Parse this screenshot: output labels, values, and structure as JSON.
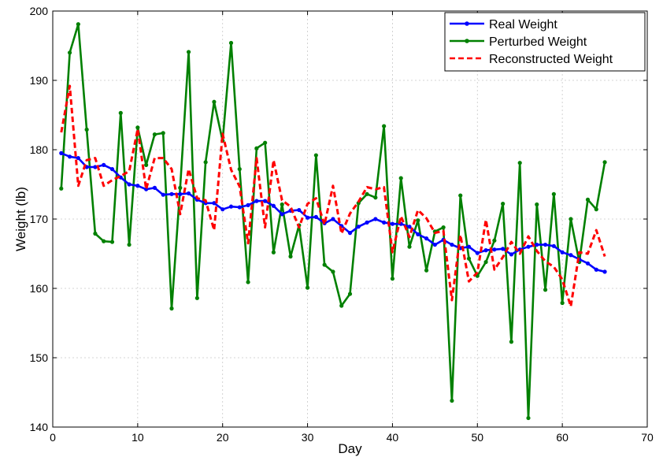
{
  "chart_data": {
    "type": "line",
    "title": "",
    "xlabel": "Day",
    "ylabel": "Weight (lb)",
    "xlim": [
      0,
      70
    ],
    "ylim": [
      140,
      200
    ],
    "xticks": [
      0,
      10,
      20,
      30,
      40,
      50,
      60,
      70
    ],
    "yticks": [
      140,
      150,
      160,
      170,
      180,
      190,
      200
    ],
    "grid": true,
    "legend_position": "top-right",
    "x": [
      1,
      2,
      3,
      4,
      5,
      6,
      7,
      8,
      9,
      10,
      11,
      12,
      13,
      14,
      15,
      16,
      17,
      18,
      19,
      20,
      21,
      22,
      23,
      24,
      25,
      26,
      27,
      28,
      29,
      30,
      31,
      32,
      33,
      34,
      35,
      36,
      37,
      38,
      39,
      40,
      41,
      42,
      43,
      44,
      45,
      46,
      47,
      48,
      49,
      50,
      51,
      52,
      53,
      54,
      55,
      56,
      57,
      58,
      59,
      60,
      61,
      62,
      63,
      64,
      65
    ],
    "series": [
      {
        "name": "Real Weight",
        "color": "#0000ff",
        "style": "solid",
        "marker": "dot",
        "values": [
          179.5,
          179.0,
          178.8,
          177.5,
          177.5,
          177.8,
          177.2,
          176.0,
          175.0,
          174.8,
          174.3,
          174.5,
          173.5,
          173.6,
          173.6,
          173.7,
          172.8,
          172.3,
          172.3,
          171.4,
          171.8,
          171.7,
          172.0,
          172.6,
          172.6,
          171.9,
          170.7,
          171.2,
          171.3,
          170.2,
          170.3,
          169.4,
          170.0,
          169.0,
          168.0,
          168.9,
          169.5,
          170.0,
          169.5,
          169.3,
          169.3,
          168.9,
          167.8,
          167.2,
          166.3,
          167.0,
          166.3,
          165.8,
          166.0,
          165.1,
          165.5,
          165.6,
          165.7,
          164.9,
          165.6,
          166.0,
          166.3,
          166.3,
          166.1,
          165.2,
          164.8,
          164.2,
          163.6,
          162.7,
          162.4
        ]
      },
      {
        "name": "Perturbed Weight",
        "color": "#008000",
        "style": "solid",
        "marker": "dot",
        "values": [
          174.4,
          194.0,
          198.1,
          182.9,
          167.9,
          166.8,
          166.7,
          185.3,
          166.3,
          183.2,
          177.8,
          182.2,
          182.4,
          157.1,
          174.5,
          194.1,
          158.6,
          178.2,
          186.9,
          181.3,
          195.4,
          177.2,
          160.9,
          180.2,
          181.0,
          165.2,
          172.1,
          164.6,
          169.1,
          160.1,
          179.2,
          163.4,
          162.4,
          157.5,
          159.2,
          172.3,
          173.6,
          173.1,
          183.4,
          161.4,
          175.9,
          166.0,
          169.8,
          162.6,
          168.2,
          168.8,
          143.8,
          173.4,
          164.3,
          161.8,
          163.8,
          166.9,
          172.2,
          152.3,
          178.1,
          141.3,
          172.1,
          159.8,
          173.6,
          157.9,
          170.0,
          163.8,
          172.8,
          171.4,
          178.2
        ]
      },
      {
        "name": "Reconstructed Weight",
        "color": "#ff0000",
        "style": "dashed",
        "marker": "none",
        "values": [
          182.5,
          189.2,
          174.8,
          178.5,
          178.8,
          174.8,
          175.6,
          176.2,
          176.9,
          183.0,
          174.3,
          178.8,
          178.8,
          177.2,
          170.7,
          177.2,
          173.0,
          172.7,
          168.4,
          182.3,
          177.1,
          174.7,
          166.5,
          178.8,
          168.8,
          178.5,
          172.7,
          171.8,
          168.8,
          172.2,
          173.0,
          169.2,
          174.8,
          167.9,
          170.8,
          172.5,
          174.6,
          174.3,
          174.6,
          165.2,
          170.4,
          167.4,
          171.3,
          170.1,
          168.0,
          168.3,
          158.3,
          167.7,
          161.0,
          162.3,
          169.9,
          162.7,
          164.5,
          166.7,
          165.0,
          167.5,
          165.4,
          163.9,
          163.1,
          161.3,
          157.4,
          165.2,
          165.0,
          168.4,
          164.6
        ]
      }
    ]
  }
}
